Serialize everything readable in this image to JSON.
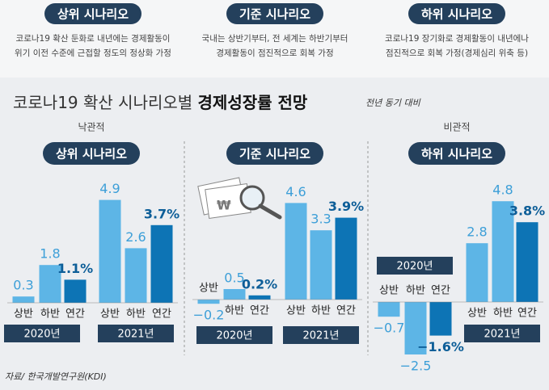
{
  "scenarios": [
    {
      "title": "상위 시나리오",
      "description": [
        "코로나19 확산 둔화로 내년에는 경제활동이",
        "위기 이전 수준에 근접할 정도의 정상화 가정"
      ]
    },
    {
      "title": "기준 시나리오",
      "description": [
        "국내는 상반기부터, 전 세계는 하반기부터",
        "경제활동이 점진적으로 회복 가정"
      ]
    },
    {
      "title": "하위 시나리오",
      "description": [
        "코로나19 장기화로 경제활동이 내년에나",
        "점진적으로 회복 가정(경제심리 위축 등)"
      ]
    }
  ],
  "headline": {
    "title_plain": "코로나19 확산 시나리오별",
    "title_bold": "경제성장률 전망",
    "subtitle": "전년 동기 대비"
  },
  "chart_data": [
    {
      "type": "bar",
      "label": "낙관적",
      "title": "상위 시나리오",
      "groups": [
        "2020년",
        "2021년"
      ],
      "categories": [
        "상반",
        "하반",
        "연간",
        "상반",
        "하반",
        "연간"
      ],
      "values": [
        0.3,
        1.8,
        1.1,
        4.9,
        2.6,
        3.7
      ],
      "value_labels": [
        "0.3",
        "1.8",
        "1.1%",
        "4.9",
        "2.6",
        "3.7%"
      ],
      "colors": [
        "#5db5e6",
        "#5db5e6",
        "#0d74b5",
        "#5db5e6",
        "#5db5e6",
        "#0d74b5"
      ]
    },
    {
      "type": "bar",
      "title": "기준 시나리오",
      "groups": [
        "2020년",
        "2021년"
      ],
      "categories": [
        "상반",
        "하반",
        "연간",
        "상반",
        "하반",
        "연간"
      ],
      "values": [
        -0.2,
        0.5,
        0.2,
        4.6,
        3.3,
        3.9
      ],
      "value_labels": [
        "−0.2",
        "0.5",
        "0.2%",
        "4.6",
        "3.3",
        "3.9%"
      ],
      "colors": [
        "#5db5e6",
        "#5db5e6",
        "#0d74b5",
        "#5db5e6",
        "#5db5e6",
        "#0d74b5"
      ]
    },
    {
      "type": "bar",
      "label": "비관적",
      "title": "하위 시나리오",
      "groups": [
        "2020년",
        "2021년"
      ],
      "categories": [
        "상반",
        "하반",
        "연간",
        "상반",
        "하반",
        "연간"
      ],
      "values": [
        -0.7,
        -2.5,
        -1.6,
        2.8,
        4.8,
        3.8
      ],
      "value_labels": [
        "−0.7",
        "−2.5",
        "−1.6%",
        "2.8",
        "4.8",
        "3.8%"
      ],
      "colors": [
        "#5db5e6",
        "#5db5e6",
        "#0d74b5",
        "#5db5e6",
        "#5db5e6",
        "#0d74b5"
      ]
    }
  ],
  "source": "자료/ 한국개발연구원(KDI)"
}
